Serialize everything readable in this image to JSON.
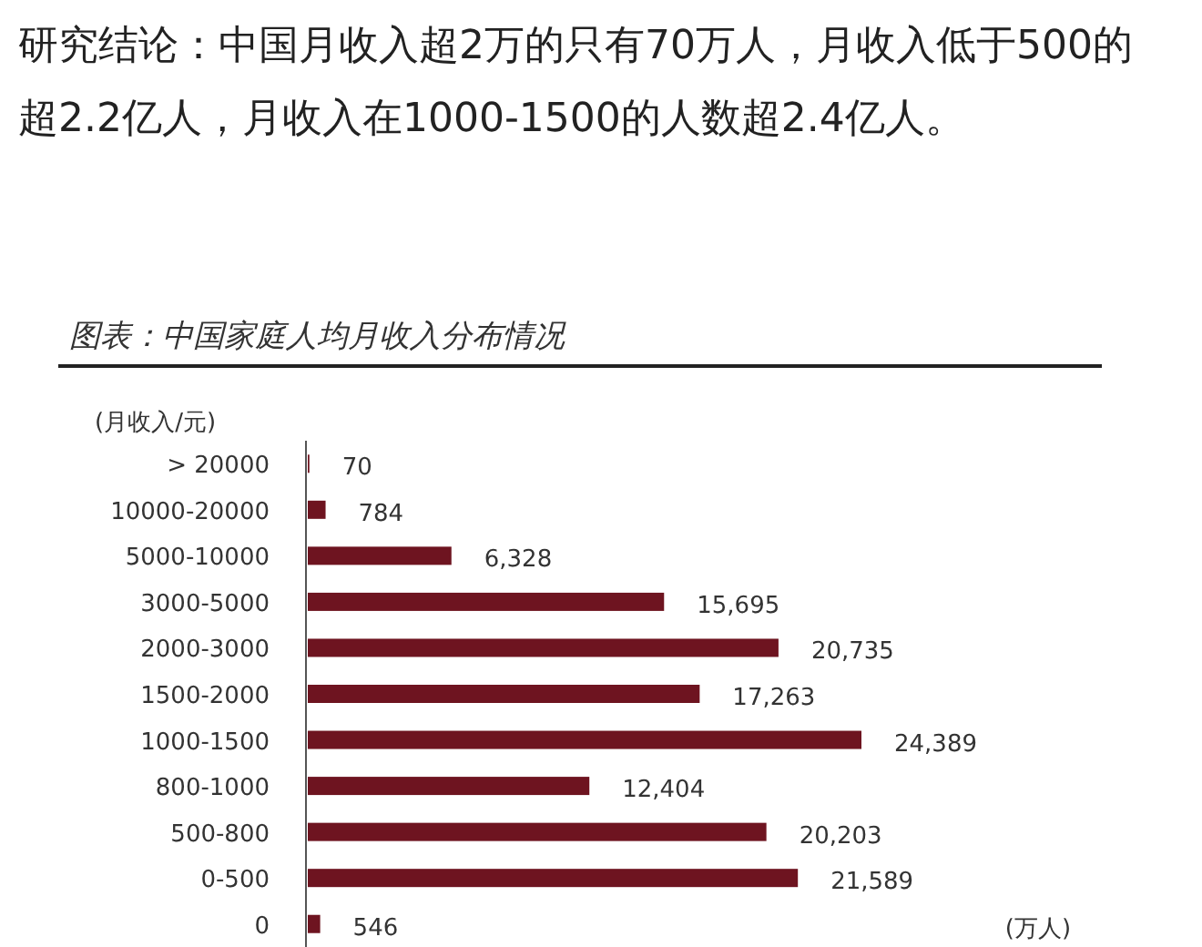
{
  "chart_data": {
    "type": "bar",
    "orientation": "horizontal",
    "title": "研究结论：中国月收入超2万的只有70万人，月收入低于500的超2.2亿人，月收入在1000-1500的人数超2.4亿人。",
    "subtitle": "图表：中国家庭人均月收入分布情况",
    "ylabel": "(月收入/元)",
    "annotations": [
      "(万人)"
    ],
    "categories": [
      "> 20000",
      "10000-20000",
      "5000-10000",
      "3000-5000",
      "2000-3000",
      "1500-2000",
      "1000-1500",
      "800-1000",
      "500-800",
      "0-500",
      "0"
    ],
    "values": [
      70,
      784,
      6328,
      15695,
      20735,
      17263,
      24389,
      12404,
      20203,
      21589,
      546
    ],
    "value_labels": [
      "70",
      "784",
      "6,328",
      "15,695",
      "20,735",
      "17,263",
      "24,389",
      "12,404",
      "20,203",
      "21,589",
      "546"
    ],
    "color": "#6e1420"
  }
}
